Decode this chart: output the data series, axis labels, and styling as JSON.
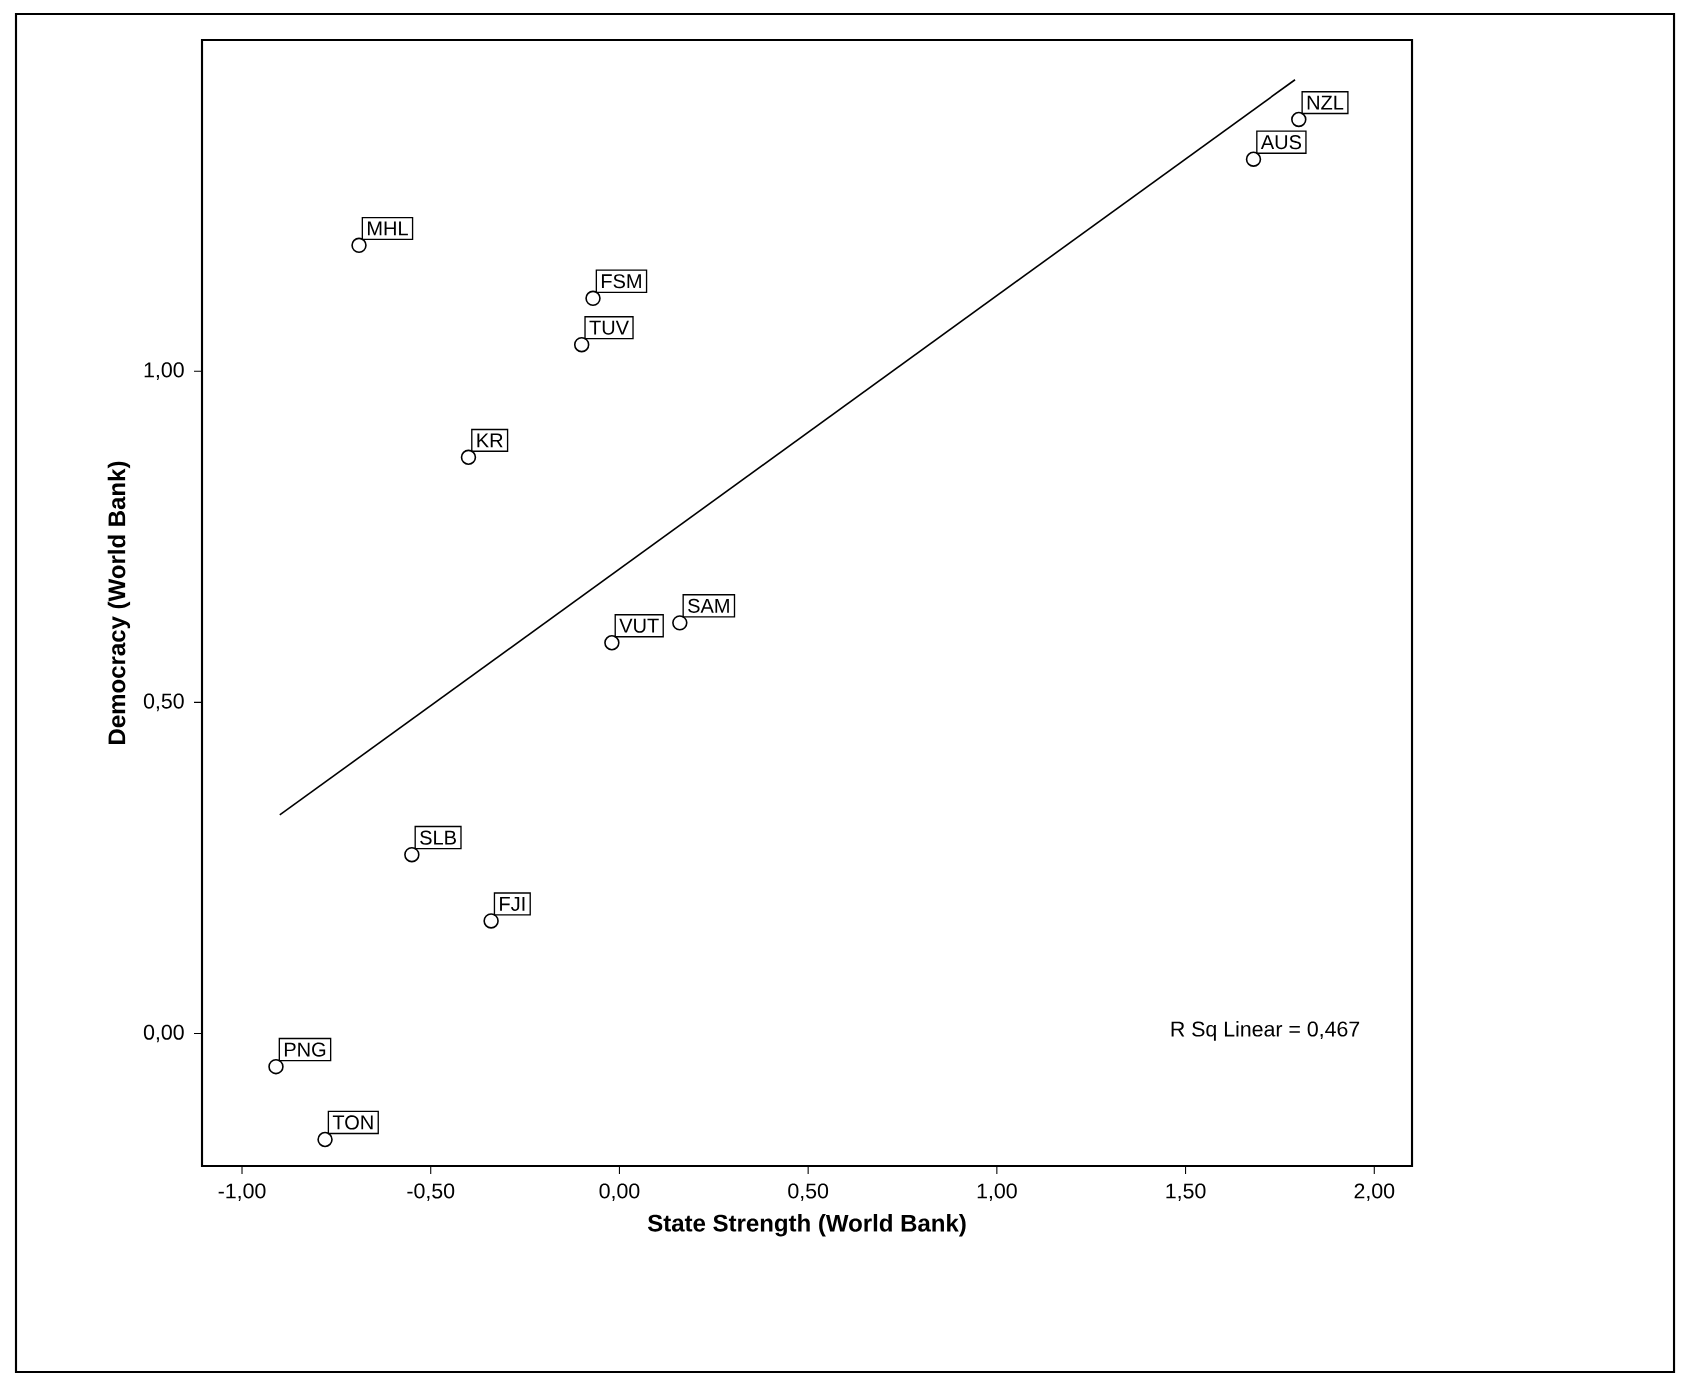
{
  "chart_data": {
    "type": "scatter",
    "xlabel": "State Strength (World Bank)",
    "ylabel": "Democracy (World Bank)",
    "xlim": [
      -1.106,
      2.1
    ],
    "ylim": [
      -0.2,
      1.5
    ],
    "xticks": [
      {
        "value": -1,
        "label": "-1,00"
      },
      {
        "value": -0.5,
        "label": "-0,50"
      },
      {
        "value": 0,
        "label": "0,00"
      },
      {
        "value": 0.5,
        "label": "0,50"
      },
      {
        "value": 1,
        "label": "1,00"
      },
      {
        "value": 1.5,
        "label": "1,50"
      },
      {
        "value": 2,
        "label": "2,00"
      }
    ],
    "yticks": [
      {
        "value": 0,
        "label": "0,00"
      },
      {
        "value": 0.5,
        "label": "0,50"
      },
      {
        "value": 1,
        "label": "1,00"
      }
    ],
    "series": [
      {
        "marker": "circle",
        "color": "#000000",
        "x": [
          -0.69,
          -0.07,
          -0.1,
          -0.4,
          -0.02,
          0.16,
          -0.55,
          -0.34,
          -0.91,
          -0.78,
          1.68,
          1.8
        ],
        "values": [
          1.19,
          1.11,
          1.04,
          0.87,
          0.59,
          0.62,
          0.27,
          0.17,
          -0.05,
          -0.16,
          1.32,
          1.38
        ]
      },
      {
        "type": "line",
        "marker": "none",
        "color": "#000000",
        "line_style": "solid",
        "x": [
          -0.9,
          1.79
        ],
        "values": [
          0.33,
          1.44
        ]
      }
    ],
    "annotations": [
      {
        "text": "MHL",
        "x": -0.69,
        "y": 1.19
      },
      {
        "text": "FSM",
        "x": -0.07,
        "y": 1.11
      },
      {
        "text": "TUV",
        "x": -0.1,
        "y": 1.04
      },
      {
        "text": "KR",
        "x": -0.4,
        "y": 0.87
      },
      {
        "text": "VUT",
        "x": -0.02,
        "y": 0.59
      },
      {
        "text": "SAM",
        "x": 0.16,
        "y": 0.62
      },
      {
        "text": "SLB",
        "x": -0.55,
        "y": 0.27
      },
      {
        "text": "FJI",
        "x": -0.34,
        "y": 0.17
      },
      {
        "text": "PNG",
        "x": -0.91,
        "y": -0.05
      },
      {
        "text": "TON",
        "x": -0.78,
        "y": -0.16
      },
      {
        "text": "AUS",
        "x": 1.68,
        "y": 1.32
      },
      {
        "text": "NZL",
        "x": 1.8,
        "y": 1.38
      },
      "R Sq Linear = 0,467"
    ]
  }
}
